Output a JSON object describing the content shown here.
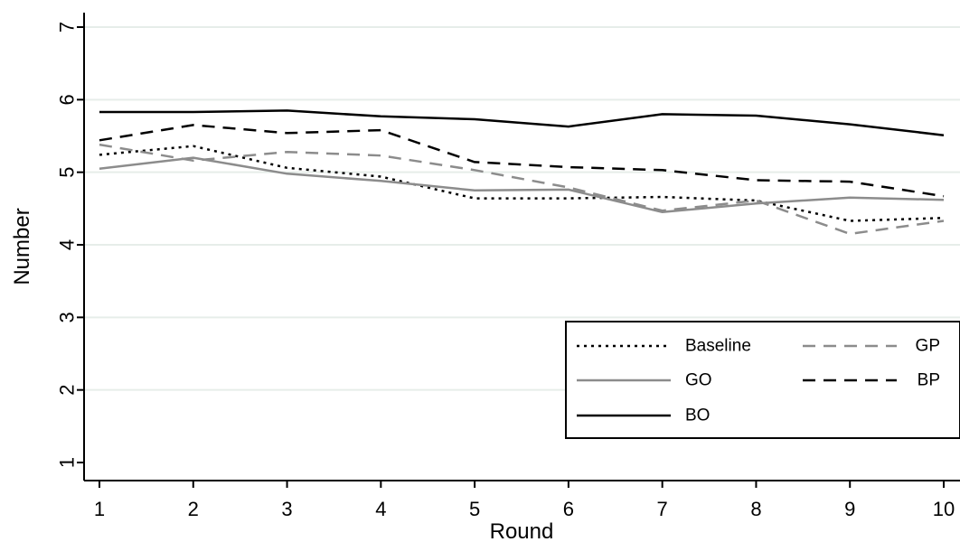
{
  "chart_data": {
    "type": "line",
    "title": "",
    "xlabel": "Round",
    "ylabel": "Number",
    "x": [
      1,
      2,
      3,
      4,
      5,
      6,
      7,
      8,
      9,
      10
    ],
    "xticks": [
      "1",
      "2",
      "3",
      "4",
      "5",
      "6",
      "7",
      "8",
      "9",
      "10"
    ],
    "yticks": [
      "1",
      "2",
      "3",
      "4",
      "5",
      "6",
      "7"
    ],
    "xlim": [
      1,
      10
    ],
    "ylim": [
      1,
      7
    ],
    "grid": "horizontal",
    "legend_position": "bottom-right",
    "series": [
      {
        "name": "Baseline",
        "values": [
          5.24,
          5.36,
          5.06,
          4.94,
          4.64,
          4.64,
          4.66,
          4.61,
          4.33,
          4.37
        ],
        "color": "#000000",
        "style": "dotted"
      },
      {
        "name": "GP",
        "values": [
          5.38,
          5.16,
          5.28,
          5.23,
          5.03,
          4.79,
          4.47,
          4.61,
          4.15,
          4.33
        ],
        "color": "#8c8c8c",
        "style": "dashed"
      },
      {
        "name": "GO",
        "values": [
          5.05,
          5.2,
          4.98,
          4.88,
          4.75,
          4.76,
          4.45,
          4.57,
          4.65,
          4.62
        ],
        "color": "#8c8c8c",
        "style": "solid"
      },
      {
        "name": "BP",
        "values": [
          5.44,
          5.65,
          5.54,
          5.58,
          5.14,
          5.07,
          5.03,
          4.89,
          4.87,
          4.67
        ],
        "color": "#000000",
        "style": "dashed"
      },
      {
        "name": "BO",
        "values": [
          5.83,
          5.83,
          5.85,
          5.77,
          5.73,
          5.63,
          5.8,
          5.78,
          5.66,
          5.51
        ],
        "color": "#000000",
        "style": "solid"
      }
    ],
    "legend": {
      "columns": [
        [
          "Baseline",
          "GO",
          "BO"
        ],
        [
          "GP",
          "BP"
        ]
      ]
    }
  }
}
